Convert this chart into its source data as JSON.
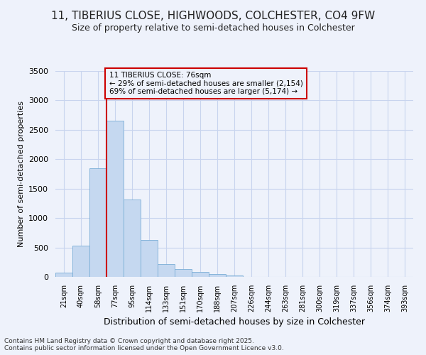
{
  "title_line1": "11, TIBERIUS CLOSE, HIGHWOODS, COLCHESTER, CO4 9FW",
  "title_line2": "Size of property relative to semi-detached houses in Colchester",
  "xlabel": "Distribution of semi-detached houses by size in Colchester",
  "ylabel": "Number of semi-detached properties",
  "annotation_title": "11 TIBERIUS CLOSE: 76sqm",
  "annotation_line2": "← 29% of semi-detached houses are smaller (2,154)",
  "annotation_line3": "69% of semi-detached houses are larger (5,174) →",
  "footer_line1": "Contains HM Land Registry data © Crown copyright and database right 2025.",
  "footer_line2": "Contains public sector information licensed under the Open Government Licence v3.0.",
  "categories": [
    "21sqm",
    "40sqm",
    "58sqm",
    "77sqm",
    "95sqm",
    "114sqm",
    "133sqm",
    "151sqm",
    "170sqm",
    "188sqm",
    "207sqm",
    "226sqm",
    "244sqm",
    "263sqm",
    "281sqm",
    "300sqm",
    "319sqm",
    "337sqm",
    "356sqm",
    "374sqm",
    "393sqm"
  ],
  "values": [
    75,
    530,
    1850,
    2650,
    1310,
    630,
    215,
    130,
    80,
    50,
    30,
    0,
    0,
    0,
    0,
    0,
    0,
    0,
    0,
    0,
    0
  ],
  "bar_color": "#c5d8f0",
  "bar_edge_color": "#7aaed6",
  "vline_color": "#cc0000",
  "property_bin_index": 3,
  "ylim": [
    0,
    3500
  ],
  "yticks": [
    0,
    500,
    1000,
    1500,
    2000,
    2500,
    3000,
    3500
  ],
  "background_color": "#eef2fb",
  "grid_color": "#c8d4ee",
  "annotation_box_color": "#cc0000",
  "title1_fontsize": 11,
  "title2_fontsize": 9
}
